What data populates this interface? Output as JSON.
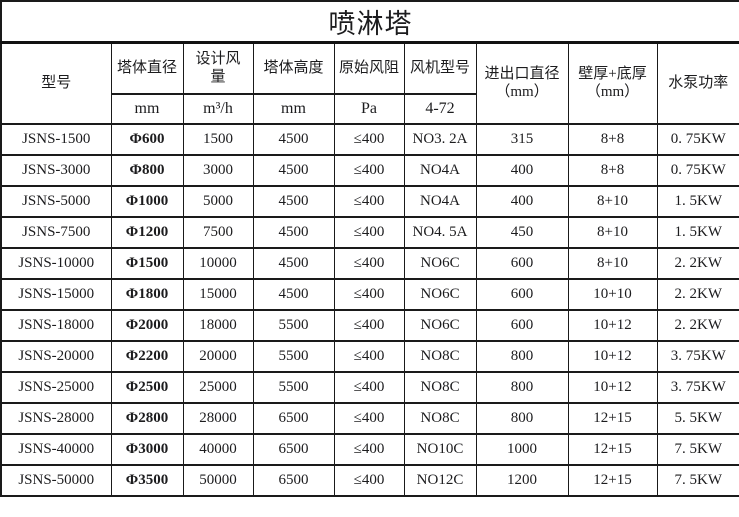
{
  "title": "喷淋塔",
  "table": {
    "columns": [
      {
        "key": "model",
        "label": "型号",
        "unit": ""
      },
      {
        "key": "tower-diameter",
        "label": "塔体直径",
        "unit": "mm"
      },
      {
        "key": "design-air-volume",
        "label": "设计风\n量",
        "unit": "m³/h"
      },
      {
        "key": "tower-height",
        "label": "塔体高度",
        "unit": "mm"
      },
      {
        "key": "initial-wind-resistance",
        "label": "原始风阻",
        "unit": "Pa"
      },
      {
        "key": "fan-model",
        "label": "风机型号",
        "unit": "4-72"
      },
      {
        "key": "inlet-outlet-diameter",
        "label": "进出口直径\n（mm）",
        "unit": ""
      },
      {
        "key": "wall-bottom-thickness",
        "label": "壁厚+底厚\n（mm）",
        "unit": ""
      },
      {
        "key": "pump-power",
        "label": "水泵功率",
        "unit": ""
      }
    ],
    "rows": [
      [
        "JSNS-1500",
        "Φ600",
        "1500",
        "4500",
        "≤400",
        "NO3. 2A",
        "315",
        "8+8",
        "0. 75KW"
      ],
      [
        "JSNS-3000",
        "Φ800",
        "3000",
        "4500",
        "≤400",
        "NO4A",
        "400",
        "8+8",
        "0. 75KW"
      ],
      [
        "JSNS-5000",
        "Φ1000",
        "5000",
        "4500",
        "≤400",
        "NO4A",
        "400",
        "8+10",
        "1. 5KW"
      ],
      [
        "JSNS-7500",
        "Φ1200",
        "7500",
        "4500",
        "≤400",
        "NO4. 5A",
        "450",
        "8+10",
        "1. 5KW"
      ],
      [
        "JSNS-10000",
        "Φ1500",
        "10000",
        "4500",
        "≤400",
        "NO6C",
        "600",
        "8+10",
        "2. 2KW"
      ],
      [
        "JSNS-15000",
        "Φ1800",
        "15000",
        "4500",
        "≤400",
        "NO6C",
        "600",
        "10+10",
        "2. 2KW"
      ],
      [
        "JSNS-18000",
        "Φ2000",
        "18000",
        "5500",
        "≤400",
        "NO6C",
        "600",
        "10+12",
        "2. 2KW"
      ],
      [
        "JSNS-20000",
        "Φ2200",
        "20000",
        "5500",
        "≤400",
        "NO8C",
        "800",
        "10+12",
        "3. 75KW"
      ],
      [
        "JSNS-25000",
        "Φ2500",
        "25000",
        "5500",
        "≤400",
        "NO8C",
        "800",
        "10+12",
        "3. 75KW"
      ],
      [
        "JSNS-28000",
        "Φ2800",
        "28000",
        "6500",
        "≤400",
        "NO8C",
        "800",
        "12+15",
        "5. 5KW"
      ],
      [
        "JSNS-40000",
        "Φ3000",
        "40000",
        "6500",
        "≤400",
        "NO10C",
        "1000",
        "12+15",
        "7. 5KW"
      ],
      [
        "JSNS-50000",
        "Φ3500",
        "50000",
        "6500",
        "≤400",
        "NO12C",
        "1200",
        "12+15",
        "7. 5KW"
      ]
    ]
  }
}
